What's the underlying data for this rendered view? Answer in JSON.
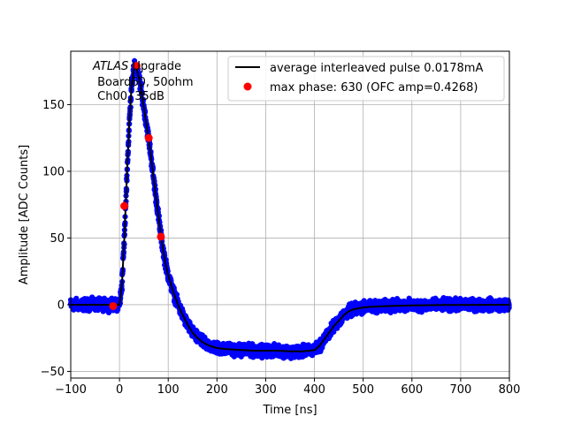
{
  "chart_data": {
    "type": "line",
    "xlabel": "Time [ns]",
    "ylabel": "Amplitude [ADC Counts]",
    "xlim": [
      -100,
      800
    ],
    "ylim": [
      -55,
      190
    ],
    "xticks": [
      -100,
      0,
      100,
      200,
      300,
      400,
      500,
      600,
      700,
      800
    ],
    "yticks": [
      -50,
      0,
      50,
      100,
      150
    ],
    "grid": true,
    "legend_placement": "top-right",
    "annotation": {
      "line1_italic": "ATLAS",
      "line1_rest": " Upgrade",
      "line2": " Board60, 50ohm",
      "line3": " Ch00, 35dB"
    },
    "series": [
      {
        "name": "average interleaved pulse 0.0178mA",
        "color": "#000000",
        "x": [
          -100,
          0,
          5,
          10,
          15,
          20,
          25,
          30,
          35,
          40,
          45,
          50,
          55,
          60,
          65,
          70,
          75,
          80,
          85,
          90,
          95,
          100,
          110,
          120,
          130,
          140,
          150,
          160,
          170,
          180,
          190,
          200,
          225,
          250,
          275,
          300,
          325,
          350,
          375,
          390,
          400,
          410,
          420,
          430,
          440,
          450,
          460,
          470,
          480,
          500,
          520,
          550,
          600,
          650,
          700,
          750,
          800
        ],
        "y": [
          0,
          0,
          15,
          50,
          95,
          135,
          165,
          178,
          177,
          170,
          160,
          148,
          136,
          124,
          110,
          95,
          80,
          66,
          52,
          40,
          30,
          22,
          10,
          0,
          -8,
          -15,
          -21,
          -25,
          -28,
          -30,
          -31.5,
          -32.5,
          -33.5,
          -34,
          -34.5,
          -34.5,
          -34.5,
          -35,
          -35,
          -34.5,
          -34,
          -31,
          -26,
          -21,
          -16,
          -12,
          -8,
          -5,
          -3.5,
          -2,
          -1.5,
          -1,
          -0.5,
          -0.3,
          -0.2,
          -0.1,
          0
        ]
      },
      {
        "name": "",
        "color": "#0000ff",
        "band": true
      },
      {
        "name": "max phase: 630 (OFC amp=0.4268)",
        "color": "#ff0000",
        "marker": "circle",
        "x": [
          -13,
          10,
          35,
          60,
          85
        ],
        "y": [
          -1,
          74,
          179,
          125,
          51
        ]
      }
    ]
  }
}
